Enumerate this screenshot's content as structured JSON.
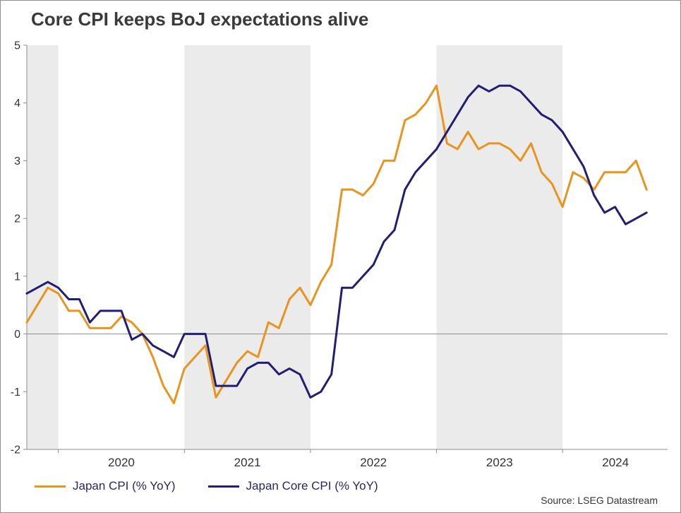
{
  "chart_data": {
    "type": "line",
    "title": "Core CPI keeps BoJ expectations alive",
    "source": "Source: LSEG Datastream",
    "x_start": {
      "year": 2019,
      "month": 10
    },
    "x_unit": "month",
    "xlim": [
      2019.75,
      2024.8333
    ],
    "ylim": [
      -2,
      5
    ],
    "yticks": [
      5,
      4,
      3,
      2,
      1,
      0,
      -1,
      -2
    ],
    "xticks_year_boundaries": [
      2020,
      2021,
      2022,
      2023,
      2024
    ],
    "xtick_labels": [
      {
        "t": 2020.5,
        "label": "2020"
      },
      {
        "t": 2021.5,
        "label": "2021"
      },
      {
        "t": 2022.5,
        "label": "2022"
      },
      {
        "t": 2023.5,
        "label": "2023"
      },
      {
        "t": 2024.42,
        "label": "2024"
      }
    ],
    "shaded_bands": [
      [
        2019.75,
        2020.0
      ],
      [
        2021.0,
        2022.0
      ],
      [
        2023.0,
        2024.0
      ]
    ],
    "grid": "zero-line-only",
    "legend_position": "bottom-left",
    "colors": {
      "band": "#ebebeb",
      "axis": "#8c8c8c",
      "zero_line": "#8c8c8c",
      "tick_label": "#333333",
      "title": "#3a3a3a",
      "legend_text": "#28285f",
      "source_text": "#333333"
    },
    "series": [
      {
        "name": "Japan CPI (% YoY)",
        "color": "#E8941F",
        "values": [
          0.2,
          0.5,
          0.8,
          0.7,
          0.4,
          0.4,
          0.1,
          0.1,
          0.1,
          0.3,
          0.2,
          0.0,
          -0.4,
          -0.9,
          -1.2,
          -0.6,
          -0.4,
          -0.2,
          -1.1,
          -0.8,
          -0.5,
          -0.3,
          -0.4,
          0.2,
          0.1,
          0.6,
          0.8,
          0.5,
          0.9,
          1.2,
          2.5,
          2.5,
          2.4,
          2.6,
          3.0,
          3.0,
          3.7,
          3.8,
          4.0,
          4.3,
          3.3,
          3.2,
          3.5,
          3.2,
          3.3,
          3.3,
          3.2,
          3.0,
          3.3,
          2.8,
          2.6,
          2.2,
          2.8,
          2.7,
          2.5,
          2.8,
          2.8,
          2.8,
          3.0,
          2.5
        ]
      },
      {
        "name": "Japan Core CPI (% YoY)",
        "color": "#221E75",
        "values": [
          0.7,
          0.8,
          0.9,
          0.8,
          0.6,
          0.6,
          0.2,
          0.4,
          0.4,
          0.4,
          -0.1,
          0.0,
          -0.2,
          -0.3,
          -0.4,
          0.0,
          0.0,
          0.0,
          -0.9,
          -0.9,
          -0.9,
          -0.6,
          -0.5,
          -0.5,
          -0.7,
          -0.6,
          -0.7,
          -1.1,
          -1.0,
          -0.7,
          0.8,
          0.8,
          1.0,
          1.2,
          1.6,
          1.8,
          2.5,
          2.8,
          3.0,
          3.2,
          3.5,
          3.8,
          4.1,
          4.3,
          4.2,
          4.3,
          4.3,
          4.2,
          4.0,
          3.8,
          3.7,
          3.5,
          3.2,
          2.9,
          2.4,
          2.1,
          2.2,
          1.9,
          2.0,
          2.1
        ]
      }
    ]
  }
}
